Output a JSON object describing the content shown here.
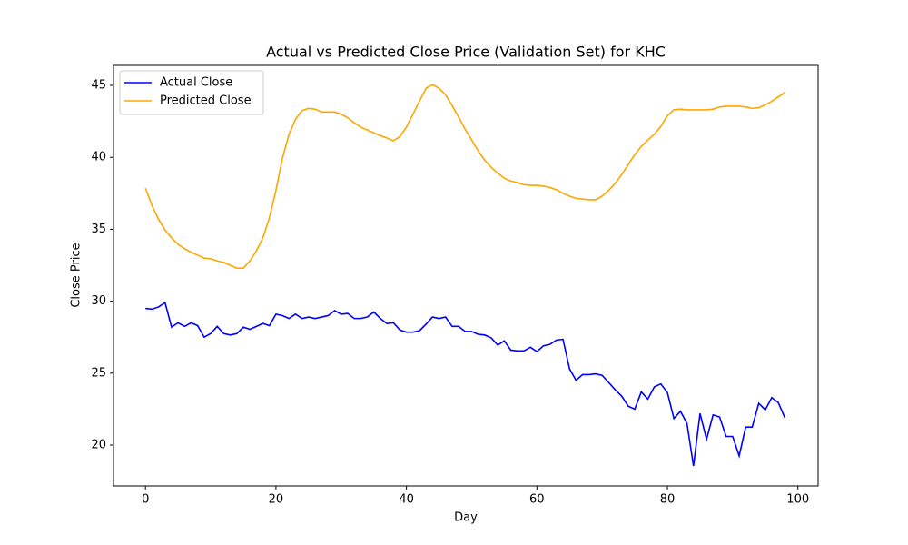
{
  "chart_data": {
    "type": "line",
    "title": "Actual vs Predicted Close Price (Validation Set) for KHC",
    "xlabel": "Day",
    "ylabel": "Close Price",
    "x": [
      0,
      1,
      2,
      3,
      4,
      5,
      6,
      7,
      8,
      9,
      10,
      11,
      12,
      13,
      14,
      15,
      16,
      17,
      18,
      19,
      20,
      21,
      22,
      23,
      24,
      25,
      26,
      27,
      28,
      29,
      30,
      31,
      32,
      33,
      34,
      35,
      36,
      37,
      38,
      39,
      40,
      41,
      42,
      43,
      44,
      45,
      46,
      47,
      48,
      49,
      50,
      51,
      52,
      53,
      54,
      55,
      56,
      57,
      58,
      59,
      60,
      61,
      62,
      63,
      64,
      65,
      66,
      67,
      68,
      69,
      70,
      71,
      72,
      73,
      74,
      75,
      76,
      77,
      78,
      79,
      80,
      81,
      82,
      83,
      84,
      85,
      86,
      87,
      88,
      89,
      90,
      91,
      92,
      93,
      94,
      95,
      96,
      97,
      98
    ],
    "series": [
      {
        "name": "Actual Close",
        "color": "#0000ff",
        "values": [
          29.5,
          29.45,
          29.6,
          29.9,
          28.2,
          28.5,
          28.25,
          28.5,
          28.3,
          27.5,
          27.75,
          28.25,
          27.75,
          27.65,
          27.75,
          28.2,
          28.05,
          28.25,
          28.45,
          28.3,
          29.1,
          29.0,
          28.8,
          29.1,
          28.8,
          28.9,
          28.8,
          28.9,
          29.0,
          29.35,
          29.1,
          29.15,
          28.8,
          28.8,
          28.9,
          29.25,
          28.8,
          28.45,
          28.5,
          28.0,
          27.85,
          27.85,
          27.95,
          28.4,
          28.9,
          28.8,
          28.9,
          28.25,
          28.25,
          27.9,
          27.9,
          27.7,
          27.65,
          27.45,
          26.95,
          27.25,
          26.6,
          26.55,
          26.55,
          26.8,
          26.5,
          26.9,
          27.0,
          27.3,
          27.35,
          25.3,
          24.5,
          24.9,
          24.9,
          24.95,
          24.85,
          24.35,
          23.85,
          23.4,
          22.7,
          22.5,
          23.7,
          23.2,
          24.05,
          24.25,
          23.65,
          21.85,
          22.35,
          21.5,
          18.55,
          22.2,
          20.4,
          22.1,
          21.95,
          20.6,
          20.6,
          19.25,
          21.25,
          21.25,
          22.9,
          22.45,
          23.3,
          22.95,
          21.9
        ]
      },
      {
        "name": "Predicted Close",
        "color": "#ffa500",
        "values": [
          37.85,
          36.65,
          35.7,
          34.95,
          34.4,
          33.95,
          33.65,
          33.4,
          33.2,
          33.0,
          32.95,
          32.8,
          32.7,
          32.5,
          32.3,
          32.3,
          32.8,
          33.5,
          34.4,
          35.8,
          37.7,
          39.95,
          41.6,
          42.65,
          43.25,
          43.4,
          43.35,
          43.15,
          43.15,
          43.15,
          43.0,
          42.75,
          42.4,
          42.1,
          41.9,
          41.7,
          41.5,
          41.35,
          41.15,
          41.45,
          42.1,
          43.0,
          43.9,
          44.8,
          45.05,
          44.8,
          44.35,
          43.6,
          42.8,
          41.95,
          41.2,
          40.45,
          39.8,
          39.3,
          38.9,
          38.55,
          38.35,
          38.25,
          38.1,
          38.05,
          38.05,
          38.0,
          37.9,
          37.75,
          37.5,
          37.3,
          37.15,
          37.1,
          37.05,
          37.05,
          37.3,
          37.7,
          38.2,
          38.8,
          39.5,
          40.2,
          40.75,
          41.2,
          41.6,
          42.15,
          42.9,
          43.3,
          43.35,
          43.3,
          43.3,
          43.3,
          43.3,
          43.35,
          43.5,
          43.55,
          43.55,
          43.55,
          43.5,
          43.4,
          43.45,
          43.65,
          43.9,
          44.2,
          44.5
        ]
      }
    ],
    "xlim": [
      -4.9,
      103.1
    ],
    "ylim": [
      17.16,
      46.39
    ],
    "xticks": [
      0,
      20,
      40,
      60,
      80,
      100
    ],
    "yticks": [
      20,
      25,
      30,
      35,
      40,
      45
    ],
    "grid": false,
    "legend": "upper-left"
  }
}
